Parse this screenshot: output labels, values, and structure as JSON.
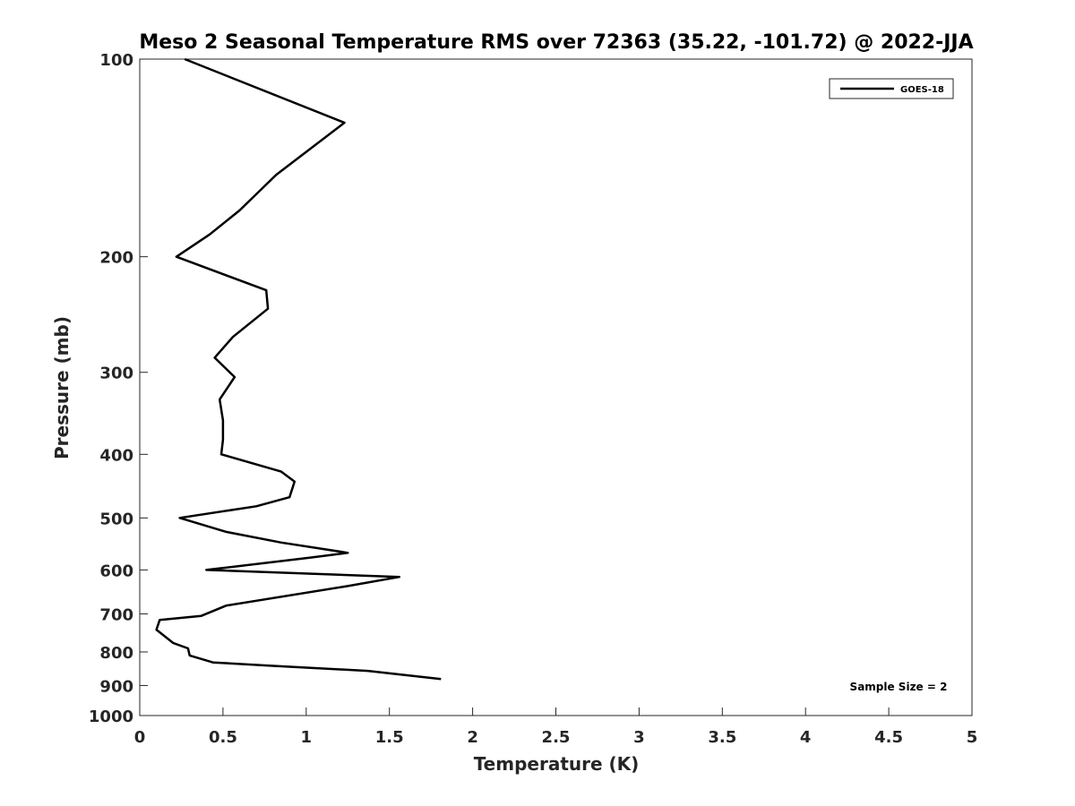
{
  "chart_data": {
    "type": "line",
    "title": "Meso 2 Seasonal Temperature RMS over 72363 (35.22, -101.72) @ 2022-JJA",
    "xlabel": "Temperature (K)",
    "ylabel": "Pressure (mb)",
    "xlim": [
      0,
      5
    ],
    "ylim": [
      100,
      1000
    ],
    "y_scale": "log",
    "y_reversed": true,
    "x_ticks": [
      "0",
      "0.5",
      "1",
      "1.5",
      "2",
      "2.5",
      "3",
      "3.5",
      "4",
      "4.5",
      "5"
    ],
    "x_tick_values": [
      0,
      0.5,
      1,
      1.5,
      2,
      2.5,
      3,
      3.5,
      4,
      4.5,
      5
    ],
    "y_ticks": [
      "100",
      "200",
      "300",
      "400",
      "500",
      "600",
      "700",
      "800",
      "900",
      "1000"
    ],
    "y_tick_values": [
      100,
      200,
      300,
      400,
      500,
      600,
      700,
      800,
      900,
      1000
    ],
    "grid": false,
    "legend_position": "top-right",
    "series": [
      {
        "name": "GOES-18",
        "color": "#000000",
        "x": [
          0.27,
          1.23,
          0.82,
          0.6,
          0.42,
          0.22,
          0.76,
          0.77,
          0.56,
          0.45,
          0.57,
          0.48,
          0.5,
          0.5,
          0.49,
          0.85,
          0.93,
          0.9,
          0.7,
          0.24,
          0.52,
          0.85,
          1.25,
          1.02,
          0.4,
          1.56,
          1.25,
          0.52,
          0.37,
          0.12,
          0.1,
          0.2,
          0.29,
          0.3,
          0.44,
          0.8,
          1.37,
          1.81
        ],
        "y": [
          100,
          125,
          150,
          170,
          185,
          200,
          225,
          240,
          265,
          285,
          305,
          330,
          355,
          380,
          400,
          425,
          440,
          465,
          480,
          500,
          525,
          545,
          565,
          575,
          600,
          615,
          635,
          680,
          705,
          715,
          740,
          775,
          790,
          810,
          830,
          840,
          855,
          880
        ]
      }
    ],
    "annotation": "Sample Size = 2"
  }
}
